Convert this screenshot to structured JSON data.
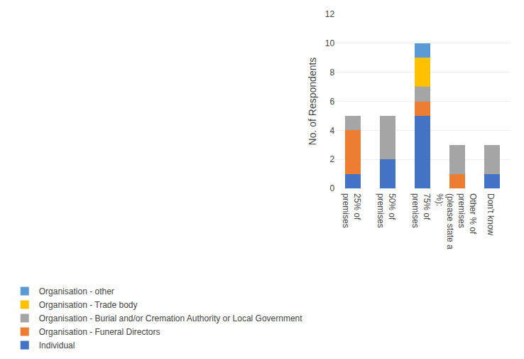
{
  "chart_data": {
    "type": "bar",
    "stacked": true,
    "categories": [
      "25% of\npremises",
      "50% of\npremises",
      "75% of\npremises",
      "Other % of\npremises\n(please state a\n%):",
      "Don't know"
    ],
    "series": [
      {
        "name": "Individual",
        "color": "#4472C4",
        "values": [
          1,
          2,
          5,
          0,
          1
        ]
      },
      {
        "name": "Organisation - Funeral Directors",
        "color": "#ED7D31",
        "values": [
          3,
          0,
          1,
          1,
          0
        ]
      },
      {
        "name": "Organisation - Burial and/or Cremation Authority or Local Government",
        "color": "#A5A5A5",
        "values": [
          1,
          3,
          1,
          2,
          2
        ]
      },
      {
        "name": "Organisation - Trade body",
        "color": "#FFC000",
        "values": [
          0,
          0,
          2,
          0,
          0
        ]
      },
      {
        "name": "Organisation - other",
        "color": "#5B9BD5",
        "values": [
          0,
          0,
          1,
          0,
          0
        ]
      }
    ],
    "ylabel": "No. of Respondents",
    "ylim": [
      0,
      12
    ],
    "yticks": [
      0,
      2,
      4,
      6,
      8,
      10,
      12
    ],
    "grid": true,
    "legend": "bottom"
  }
}
